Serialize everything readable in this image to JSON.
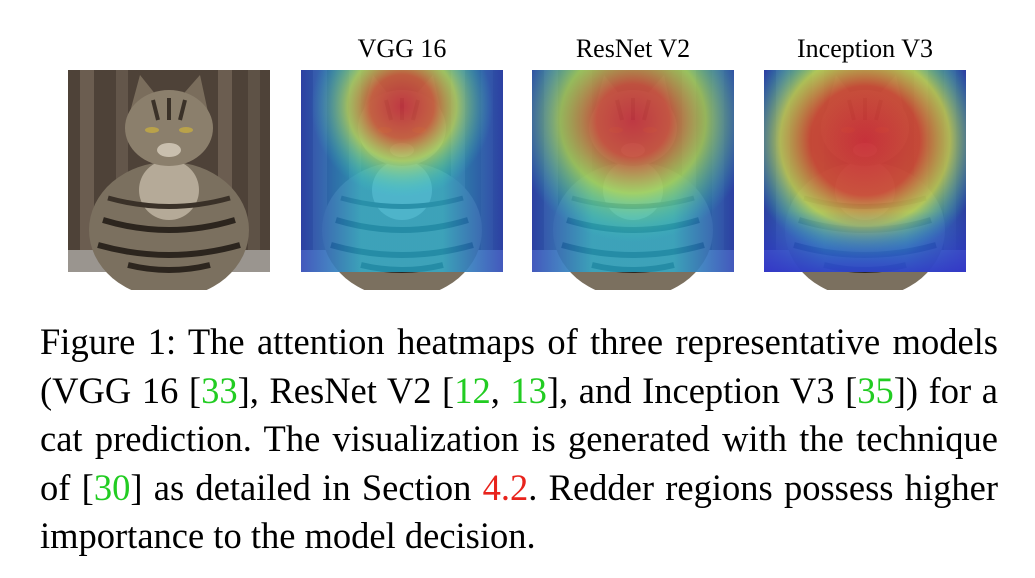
{
  "panels": [
    {
      "label": "VGG 16"
    },
    {
      "label": "ResNet V2"
    },
    {
      "label": "Inception V3"
    }
  ],
  "caption": {
    "parts": [
      {
        "text": "Figure 1: The attention heatmaps of three representative models (VGG 16 [",
        "kind": "text"
      },
      {
        "text": "33",
        "kind": "cite"
      },
      {
        "text": "], ResNet V2 [",
        "kind": "text"
      },
      {
        "text": "12",
        "kind": "cite"
      },
      {
        "text": ", ",
        "kind": "text"
      },
      {
        "text": "13",
        "kind": "cite"
      },
      {
        "text": "], and Inception V3 [",
        "kind": "text"
      },
      {
        "text": "35",
        "kind": "cite"
      },
      {
        "text": "]) for a cat prediction. The visualization is generated with the technique of [",
        "kind": "text"
      },
      {
        "text": "30",
        "kind": "cite"
      },
      {
        "text": "] as detailed in Section ",
        "kind": "text"
      },
      {
        "text": "4.2",
        "kind": "ref"
      },
      {
        "text": ". Redder regions possess higher importance to the model decision.",
        "kind": "text"
      }
    ]
  }
}
